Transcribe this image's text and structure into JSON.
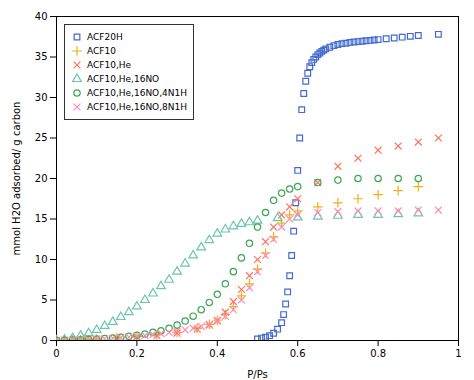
{
  "chart_data": {
    "type": "scatter",
    "xlabel": "P/Ps",
    "ylabel": "mmol H2O adsorbed/ g carbon",
    "xlim": [
      0,
      1
    ],
    "ylim": [
      0,
      40
    ],
    "xticks": [
      0,
      0.2,
      0.4,
      0.6,
      0.8,
      1
    ],
    "yticks": [
      0,
      5,
      10,
      15,
      20,
      25,
      30,
      35,
      40
    ],
    "grid": false,
    "legend": "upper left",
    "series": [
      {
        "name": "ACF20H",
        "marker": "square",
        "x": [
          0.5,
          0.51,
          0.52,
          0.53,
          0.54,
          0.55,
          0.56,
          0.565,
          0.57,
          0.575,
          0.58,
          0.585,
          0.59,
          0.595,
          0.6,
          0.605,
          0.61,
          0.615,
          0.62,
          0.625,
          0.63,
          0.635,
          0.64,
          0.645,
          0.65,
          0.655,
          0.66,
          0.665,
          0.67,
          0.68,
          0.69,
          0.7,
          0.71,
          0.72,
          0.73,
          0.74,
          0.75,
          0.76,
          0.77,
          0.78,
          0.79,
          0.8,
          0.82,
          0.84,
          0.86,
          0.88,
          0.9,
          0.95
        ],
        "values": [
          0.2,
          0.3,
          0.4,
          0.6,
          0.9,
          1.4,
          2.2,
          3.2,
          4.5,
          6.0,
          8.0,
          10.5,
          13.5,
          17.0,
          21.0,
          25.0,
          28.5,
          30.5,
          32.0,
          33.0,
          33.8,
          34.3,
          34.7,
          35.0,
          35.3,
          35.5,
          35.7,
          35.85,
          36.0,
          36.2,
          36.4,
          36.55,
          36.65,
          36.7,
          36.8,
          36.85,
          36.9,
          36.95,
          37.0,
          37.05,
          37.1,
          37.15,
          37.25,
          37.35,
          37.45,
          37.55,
          37.65,
          37.8
        ]
      },
      {
        "name": "ACF10",
        "marker": "plus",
        "x": [
          0.0,
          0.02,
          0.04,
          0.06,
          0.08,
          0.1,
          0.15,
          0.2,
          0.25,
          0.3,
          0.35,
          0.38,
          0.4,
          0.42,
          0.44,
          0.46,
          0.48,
          0.5,
          0.52,
          0.54,
          0.56,
          0.58,
          0.6,
          0.65,
          0.7,
          0.75,
          0.8,
          0.85,
          0.9
        ],
        "values": [
          0.0,
          0.02,
          0.05,
          0.08,
          0.12,
          0.18,
          0.35,
          0.5,
          0.7,
          1.0,
          1.5,
          2.0,
          2.5,
          3.2,
          4.2,
          5.5,
          7.0,
          8.8,
          10.8,
          12.8,
          14.5,
          15.5,
          16.0,
          16.5,
          17.0,
          17.5,
          18.0,
          18.5,
          19.0
        ]
      },
      {
        "name": "ACF10,He",
        "marker": "x",
        "x": [
          0.0,
          0.02,
          0.04,
          0.06,
          0.08,
          0.1,
          0.15,
          0.2,
          0.25,
          0.3,
          0.35,
          0.38,
          0.4,
          0.42,
          0.44,
          0.46,
          0.48,
          0.5,
          0.52,
          0.54,
          0.56,
          0.58,
          0.6,
          0.65,
          0.7,
          0.75,
          0.8,
          0.85,
          0.9,
          0.95
        ],
        "values": [
          0.0,
          0.02,
          0.04,
          0.06,
          0.09,
          0.13,
          0.25,
          0.4,
          0.6,
          0.9,
          1.4,
          1.9,
          2.5,
          3.5,
          4.8,
          6.3,
          8.0,
          10.0,
          12.2,
          14.0,
          15.5,
          16.5,
          17.5,
          19.5,
          21.5,
          22.5,
          23.5,
          24.0,
          24.5,
          25.0
        ]
      },
      {
        "name": "ACF10,He,16NO",
        "marker": "triangle",
        "x": [
          0.0,
          0.02,
          0.04,
          0.06,
          0.08,
          0.1,
          0.12,
          0.14,
          0.16,
          0.18,
          0.2,
          0.22,
          0.24,
          0.26,
          0.28,
          0.3,
          0.32,
          0.34,
          0.36,
          0.38,
          0.4,
          0.42,
          0.44,
          0.46,
          0.48,
          0.5,
          0.55,
          0.6,
          0.65,
          0.7,
          0.75,
          0.8,
          0.85,
          0.9
        ],
        "values": [
          0.0,
          0.1,
          0.3,
          0.6,
          0.9,
          1.3,
          1.8,
          2.3,
          2.9,
          3.5,
          4.2,
          5.0,
          5.8,
          6.7,
          7.5,
          8.5,
          9.5,
          10.5,
          11.5,
          12.4,
          13.2,
          13.7,
          14.1,
          14.4,
          14.6,
          14.8,
          15.1,
          15.2,
          15.3,
          15.4,
          15.5,
          15.5,
          15.6,
          15.7
        ]
      },
      {
        "name": "ACF10,He,16NO,4N1H",
        "marker": "circle",
        "x": [
          0.0,
          0.02,
          0.04,
          0.06,
          0.08,
          0.1,
          0.12,
          0.14,
          0.16,
          0.18,
          0.2,
          0.22,
          0.24,
          0.26,
          0.28,
          0.3,
          0.32,
          0.34,
          0.36,
          0.38,
          0.4,
          0.42,
          0.44,
          0.46,
          0.48,
          0.5,
          0.52,
          0.54,
          0.56,
          0.58,
          0.6,
          0.65,
          0.7,
          0.75,
          0.8,
          0.85,
          0.9
        ],
        "values": [
          0.0,
          0.02,
          0.05,
          0.08,
          0.12,
          0.17,
          0.23,
          0.3,
          0.4,
          0.52,
          0.65,
          0.8,
          1.0,
          1.2,
          1.5,
          1.9,
          2.4,
          3.0,
          3.8,
          4.7,
          5.7,
          7.0,
          8.5,
          10.2,
          12.0,
          14.0,
          15.8,
          17.3,
          18.2,
          18.7,
          19.0,
          19.5,
          19.8,
          20.0,
          20.0,
          20.0,
          20.0
        ]
      },
      {
        "name": "ACF10,He,16NO,8N1H",
        "marker": "x",
        "x": [
          0.0,
          0.02,
          0.04,
          0.06,
          0.08,
          0.1,
          0.12,
          0.14,
          0.16,
          0.18,
          0.2,
          0.22,
          0.24,
          0.26,
          0.28,
          0.3,
          0.32,
          0.34,
          0.36,
          0.38,
          0.4,
          0.42,
          0.44,
          0.46,
          0.48,
          0.5,
          0.52,
          0.54,
          0.56,
          0.58,
          0.6,
          0.65,
          0.7,
          0.75,
          0.8,
          0.85,
          0.9,
          0.95
        ],
        "values": [
          0.0,
          0.02,
          0.05,
          0.08,
          0.12,
          0.17,
          0.22,
          0.28,
          0.35,
          0.43,
          0.52,
          0.62,
          0.73,
          0.85,
          1.0,
          1.15,
          1.32,
          1.52,
          1.75,
          2.0,
          2.4,
          3.0,
          3.8,
          5.0,
          6.5,
          8.5,
          10.5,
          12.5,
          14.0,
          15.0,
          15.5,
          15.8,
          15.9,
          16.0,
          16.0,
          16.0,
          16.1,
          16.1
        ]
      }
    ]
  }
}
